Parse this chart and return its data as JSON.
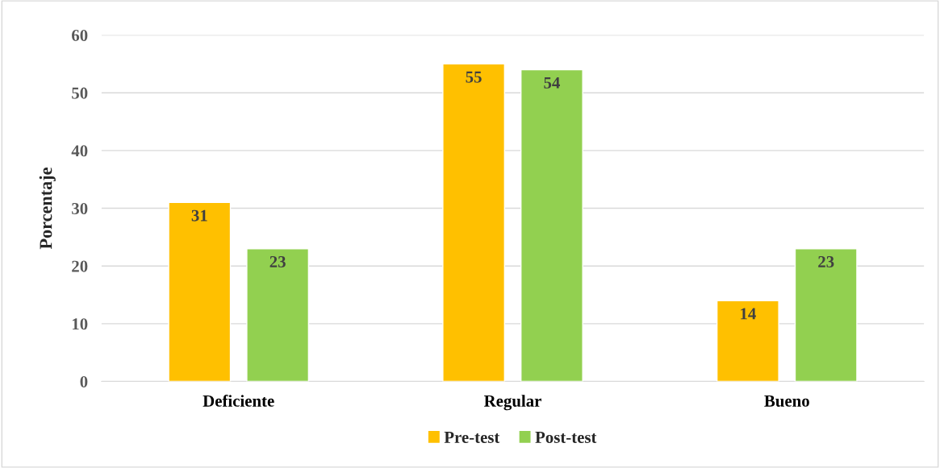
{
  "chart_data": {
    "type": "bar",
    "ylabel": "Porcentaje",
    "categories": [
      "Deficiente",
      "Regular",
      "Bueno"
    ],
    "series": [
      {
        "name": "Pre-test",
        "color": "#ffc000",
        "values": [
          31,
          55,
          14
        ]
      },
      {
        "name": "Post-test",
        "color": "#92d050",
        "values": [
          23,
          54,
          23
        ]
      }
    ],
    "ylim": [
      0,
      60
    ],
    "yticks": [
      0,
      10,
      20,
      30,
      40,
      50,
      60
    ],
    "grid": "y",
    "legend": "bottom",
    "data_labels": true
  }
}
